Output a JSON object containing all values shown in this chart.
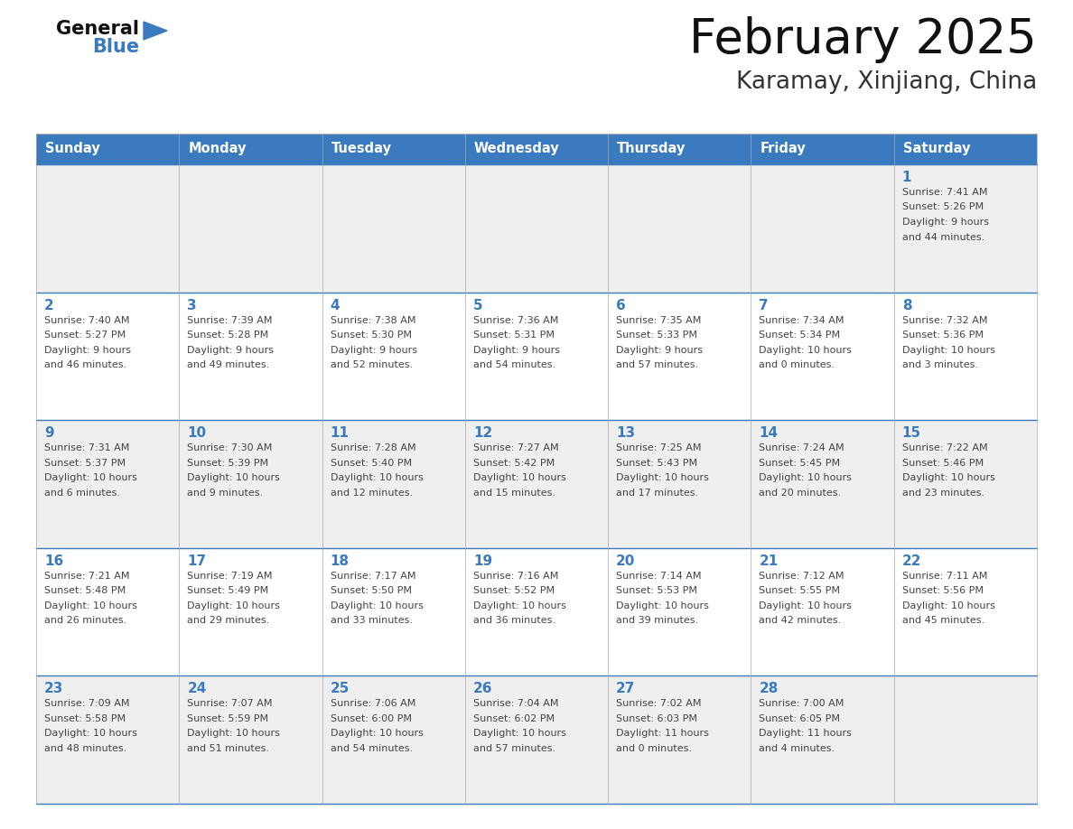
{
  "title": "February 2025",
  "subtitle": "Karamay, Xinjiang, China",
  "header_bg": "#3a7abf",
  "header_text": "#ffffff",
  "day_headers": [
    "Sunday",
    "Monday",
    "Tuesday",
    "Wednesday",
    "Thursday",
    "Friday",
    "Saturday"
  ],
  "odd_row_bg": "#efefef",
  "even_row_bg": "#ffffff",
  "cell_text_color": "#444444",
  "date_color": "#3a7abf",
  "title_color": "#111111",
  "subtitle_color": "#333333",
  "logo_general_color": "#111111",
  "logo_blue_color": "#3a7abf",
  "border_color": "#3a7abf",
  "grid_color": "#aaaaaa",
  "calendar": [
    [
      {
        "day": "",
        "sunrise": "",
        "sunset": "",
        "daylight": ""
      },
      {
        "day": "",
        "sunrise": "",
        "sunset": "",
        "daylight": ""
      },
      {
        "day": "",
        "sunrise": "",
        "sunset": "",
        "daylight": ""
      },
      {
        "day": "",
        "sunrise": "",
        "sunset": "",
        "daylight": ""
      },
      {
        "day": "",
        "sunrise": "",
        "sunset": "",
        "daylight": ""
      },
      {
        "day": "",
        "sunrise": "",
        "sunset": "",
        "daylight": ""
      },
      {
        "day": "1",
        "sunrise": "7:41 AM",
        "sunset": "5:26 PM",
        "daylight": "9 hours\nand 44 minutes."
      }
    ],
    [
      {
        "day": "2",
        "sunrise": "7:40 AM",
        "sunset": "5:27 PM",
        "daylight": "9 hours\nand 46 minutes."
      },
      {
        "day": "3",
        "sunrise": "7:39 AM",
        "sunset": "5:28 PM",
        "daylight": "9 hours\nand 49 minutes."
      },
      {
        "day": "4",
        "sunrise": "7:38 AM",
        "sunset": "5:30 PM",
        "daylight": "9 hours\nand 52 minutes."
      },
      {
        "day": "5",
        "sunrise": "7:36 AM",
        "sunset": "5:31 PM",
        "daylight": "9 hours\nand 54 minutes."
      },
      {
        "day": "6",
        "sunrise": "7:35 AM",
        "sunset": "5:33 PM",
        "daylight": "9 hours\nand 57 minutes."
      },
      {
        "day": "7",
        "sunrise": "7:34 AM",
        "sunset": "5:34 PM",
        "daylight": "10 hours\nand 0 minutes."
      },
      {
        "day": "8",
        "sunrise": "7:32 AM",
        "sunset": "5:36 PM",
        "daylight": "10 hours\nand 3 minutes."
      }
    ],
    [
      {
        "day": "9",
        "sunrise": "7:31 AM",
        "sunset": "5:37 PM",
        "daylight": "10 hours\nand 6 minutes."
      },
      {
        "day": "10",
        "sunrise": "7:30 AM",
        "sunset": "5:39 PM",
        "daylight": "10 hours\nand 9 minutes."
      },
      {
        "day": "11",
        "sunrise": "7:28 AM",
        "sunset": "5:40 PM",
        "daylight": "10 hours\nand 12 minutes."
      },
      {
        "day": "12",
        "sunrise": "7:27 AM",
        "sunset": "5:42 PM",
        "daylight": "10 hours\nand 15 minutes."
      },
      {
        "day": "13",
        "sunrise": "7:25 AM",
        "sunset": "5:43 PM",
        "daylight": "10 hours\nand 17 minutes."
      },
      {
        "day": "14",
        "sunrise": "7:24 AM",
        "sunset": "5:45 PM",
        "daylight": "10 hours\nand 20 minutes."
      },
      {
        "day": "15",
        "sunrise": "7:22 AM",
        "sunset": "5:46 PM",
        "daylight": "10 hours\nand 23 minutes."
      }
    ],
    [
      {
        "day": "16",
        "sunrise": "7:21 AM",
        "sunset": "5:48 PM",
        "daylight": "10 hours\nand 26 minutes."
      },
      {
        "day": "17",
        "sunrise": "7:19 AM",
        "sunset": "5:49 PM",
        "daylight": "10 hours\nand 29 minutes."
      },
      {
        "day": "18",
        "sunrise": "7:17 AM",
        "sunset": "5:50 PM",
        "daylight": "10 hours\nand 33 minutes."
      },
      {
        "day": "19",
        "sunrise": "7:16 AM",
        "sunset": "5:52 PM",
        "daylight": "10 hours\nand 36 minutes."
      },
      {
        "day": "20",
        "sunrise": "7:14 AM",
        "sunset": "5:53 PM",
        "daylight": "10 hours\nand 39 minutes."
      },
      {
        "day": "21",
        "sunrise": "7:12 AM",
        "sunset": "5:55 PM",
        "daylight": "10 hours\nand 42 minutes."
      },
      {
        "day": "22",
        "sunrise": "7:11 AM",
        "sunset": "5:56 PM",
        "daylight": "10 hours\nand 45 minutes."
      }
    ],
    [
      {
        "day": "23",
        "sunrise": "7:09 AM",
        "sunset": "5:58 PM",
        "daylight": "10 hours\nand 48 minutes."
      },
      {
        "day": "24",
        "sunrise": "7:07 AM",
        "sunset": "5:59 PM",
        "daylight": "10 hours\nand 51 minutes."
      },
      {
        "day": "25",
        "sunrise": "7:06 AM",
        "sunset": "6:00 PM",
        "daylight": "10 hours\nand 54 minutes."
      },
      {
        "day": "26",
        "sunrise": "7:04 AM",
        "sunset": "6:02 PM",
        "daylight": "10 hours\nand 57 minutes."
      },
      {
        "day": "27",
        "sunrise": "7:02 AM",
        "sunset": "6:03 PM",
        "daylight": "11 hours\nand 0 minutes."
      },
      {
        "day": "28",
        "sunrise": "7:00 AM",
        "sunset": "6:05 PM",
        "daylight": "11 hours\nand 4 minutes."
      },
      {
        "day": "",
        "sunrise": "",
        "sunset": "",
        "daylight": ""
      }
    ]
  ]
}
